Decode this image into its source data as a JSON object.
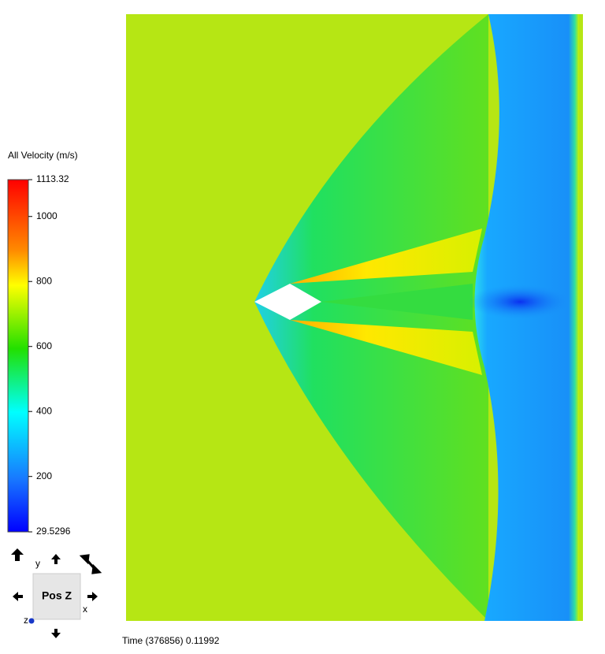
{
  "legend": {
    "title": "All Velocity (m/s)",
    "max": 1113.32,
    "min": 29.5296,
    "ticks": [
      1000,
      800,
      600,
      400,
      200
    ]
  },
  "view_widget": {
    "button": "Pos Z",
    "axis_y": "y",
    "axis_x": "x",
    "axis_z": "z"
  },
  "status": {
    "time": "Time (376856) 0.11992"
  }
}
